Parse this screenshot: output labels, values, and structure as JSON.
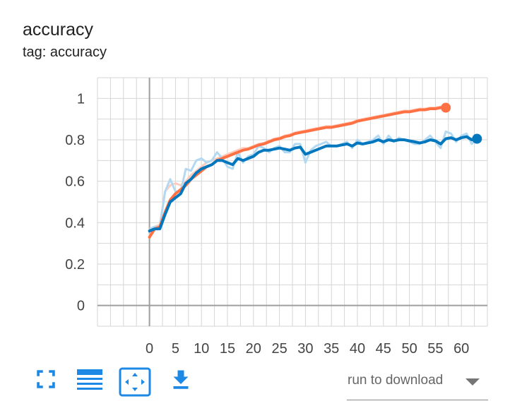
{
  "card": {
    "title": "accuracy",
    "subtitle": "tag: accuracy"
  },
  "toolbar": {
    "icons": [
      "fullscreen-icon",
      "data-table-icon",
      "fit-domain-icon",
      "download-icon"
    ],
    "accent_color": "#1e88e5"
  },
  "run_select": {
    "label": "run to download"
  },
  "chart_data": {
    "type": "line",
    "title": "accuracy",
    "xlabel": "",
    "ylabel": "",
    "xlim": [
      -10,
      65
    ],
    "ylim": [
      -0.1,
      1.1
    ],
    "x_ticks": [
      0,
      5,
      10,
      15,
      20,
      25,
      30,
      35,
      40,
      45,
      50,
      55,
      60
    ],
    "y_ticks": [
      0,
      0.2,
      0.4,
      0.6,
      0.8,
      1
    ],
    "grid": true,
    "series": [
      {
        "color": "#ff7043",
        "raw_color": "#ffccbc",
        "smoothed": [
          [
            0,
            0.33
          ],
          [
            1,
            0.37
          ],
          [
            2,
            0.38
          ],
          [
            3,
            0.45
          ],
          [
            4,
            0.51
          ],
          [
            5,
            0.54
          ],
          [
            6,
            0.56
          ],
          [
            7,
            0.58
          ],
          [
            8,
            0.61
          ],
          [
            9,
            0.63
          ],
          [
            10,
            0.65
          ],
          [
            11,
            0.67
          ],
          [
            12,
            0.68
          ],
          [
            13,
            0.7
          ],
          [
            14,
            0.71
          ],
          [
            15,
            0.72
          ],
          [
            16,
            0.73
          ],
          [
            17,
            0.74
          ],
          [
            18,
            0.75
          ],
          [
            19,
            0.755
          ],
          [
            20,
            0.765
          ],
          [
            21,
            0.775
          ],
          [
            22,
            0.78
          ],
          [
            23,
            0.79
          ],
          [
            24,
            0.8
          ],
          [
            25,
            0.805
          ],
          [
            26,
            0.815
          ],
          [
            27,
            0.82
          ],
          [
            28,
            0.83
          ],
          [
            29,
            0.835
          ],
          [
            30,
            0.84
          ],
          [
            31,
            0.845
          ],
          [
            32,
            0.85
          ],
          [
            33,
            0.855
          ],
          [
            34,
            0.86
          ],
          [
            35,
            0.86
          ],
          [
            36,
            0.865
          ],
          [
            37,
            0.87
          ],
          [
            38,
            0.875
          ],
          [
            39,
            0.88
          ],
          [
            40,
            0.89
          ],
          [
            41,
            0.895
          ],
          [
            42,
            0.9
          ],
          [
            43,
            0.905
          ],
          [
            44,
            0.91
          ],
          [
            45,
            0.915
          ],
          [
            46,
            0.92
          ],
          [
            47,
            0.925
          ],
          [
            48,
            0.93
          ],
          [
            49,
            0.935
          ],
          [
            50,
            0.935
          ],
          [
            51,
            0.94
          ],
          [
            52,
            0.945
          ],
          [
            53,
            0.945
          ],
          [
            54,
            0.95
          ],
          [
            55,
            0.95
          ],
          [
            56,
            0.955
          ],
          [
            57,
            0.955
          ]
        ],
        "raw": [
          [
            0,
            0.34
          ],
          [
            1,
            0.38
          ],
          [
            2,
            0.39
          ],
          [
            3,
            0.55
          ],
          [
            4,
            0.58
          ],
          [
            5,
            0.59
          ],
          [
            6,
            0.58
          ],
          [
            7,
            0.6
          ],
          [
            8,
            0.63
          ],
          [
            9,
            0.65
          ],
          [
            10,
            0.67
          ],
          [
            11,
            0.69
          ],
          [
            12,
            0.7
          ],
          [
            13,
            0.71
          ],
          [
            14,
            0.72
          ],
          [
            15,
            0.73
          ],
          [
            16,
            0.74
          ],
          [
            17,
            0.75
          ],
          [
            18,
            0.76
          ],
          [
            19,
            0.76
          ],
          [
            20,
            0.77
          ],
          [
            21,
            0.78
          ],
          [
            22,
            0.785
          ],
          [
            23,
            0.795
          ],
          [
            24,
            0.805
          ],
          [
            25,
            0.81
          ],
          [
            26,
            0.82
          ],
          [
            27,
            0.825
          ],
          [
            28,
            0.835
          ],
          [
            29,
            0.84
          ],
          [
            30,
            0.845
          ],
          [
            31,
            0.85
          ],
          [
            32,
            0.855
          ],
          [
            33,
            0.86
          ],
          [
            34,
            0.865
          ],
          [
            35,
            0.865
          ],
          [
            36,
            0.87
          ],
          [
            37,
            0.875
          ],
          [
            38,
            0.88
          ],
          [
            39,
            0.885
          ],
          [
            40,
            0.895
          ],
          [
            41,
            0.9
          ],
          [
            42,
            0.905
          ],
          [
            43,
            0.91
          ],
          [
            44,
            0.915
          ],
          [
            45,
            0.92
          ],
          [
            46,
            0.925
          ],
          [
            47,
            0.93
          ],
          [
            48,
            0.935
          ],
          [
            49,
            0.94
          ],
          [
            50,
            0.94
          ],
          [
            51,
            0.945
          ],
          [
            52,
            0.95
          ],
          [
            53,
            0.95
          ],
          [
            54,
            0.955
          ],
          [
            55,
            0.955
          ],
          [
            56,
            0.96
          ],
          [
            57,
            0.96
          ]
        ]
      },
      {
        "color": "#0277bd",
        "raw_color": "#b3d9f2",
        "smoothed": [
          [
            0,
            0.36
          ],
          [
            1,
            0.37
          ],
          [
            2,
            0.37
          ],
          [
            3,
            0.44
          ],
          [
            4,
            0.5
          ],
          [
            5,
            0.52
          ],
          [
            6,
            0.54
          ],
          [
            7,
            0.59
          ],
          [
            8,
            0.61
          ],
          [
            9,
            0.64
          ],
          [
            10,
            0.66
          ],
          [
            11,
            0.67
          ],
          [
            12,
            0.68
          ],
          [
            13,
            0.7
          ],
          [
            14,
            0.7
          ],
          [
            15,
            0.69
          ],
          [
            16,
            0.68
          ],
          [
            17,
            0.71
          ],
          [
            18,
            0.7
          ],
          [
            19,
            0.71
          ],
          [
            20,
            0.72
          ],
          [
            21,
            0.74
          ],
          [
            22,
            0.75
          ],
          [
            23,
            0.75
          ],
          [
            24,
            0.755
          ],
          [
            25,
            0.76
          ],
          [
            26,
            0.755
          ],
          [
            27,
            0.75
          ],
          [
            28,
            0.76
          ],
          [
            29,
            0.765
          ],
          [
            30,
            0.73
          ],
          [
            31,
            0.74
          ],
          [
            32,
            0.75
          ],
          [
            33,
            0.76
          ],
          [
            34,
            0.77
          ],
          [
            35,
            0.77
          ],
          [
            36,
            0.77
          ],
          [
            37,
            0.775
          ],
          [
            38,
            0.78
          ],
          [
            39,
            0.77
          ],
          [
            40,
            0.785
          ],
          [
            41,
            0.78
          ],
          [
            42,
            0.785
          ],
          [
            43,
            0.79
          ],
          [
            44,
            0.8
          ],
          [
            45,
            0.79
          ],
          [
            46,
            0.8
          ],
          [
            47,
            0.795
          ],
          [
            48,
            0.8
          ],
          [
            49,
            0.8
          ],
          [
            50,
            0.795
          ],
          [
            51,
            0.79
          ],
          [
            52,
            0.785
          ],
          [
            53,
            0.79
          ],
          [
            54,
            0.8
          ],
          [
            55,
            0.795
          ],
          [
            56,
            0.78
          ],
          [
            57,
            0.805
          ],
          [
            58,
            0.81
          ],
          [
            59,
            0.8
          ],
          [
            60,
            0.81
          ],
          [
            61,
            0.815
          ],
          [
            62,
            0.8
          ],
          [
            63,
            0.805
          ]
        ],
        "raw": [
          [
            0,
            0.37
          ],
          [
            1,
            0.38
          ],
          [
            2,
            0.38
          ],
          [
            3,
            0.55
          ],
          [
            4,
            0.61
          ],
          [
            5,
            0.55
          ],
          [
            6,
            0.55
          ],
          [
            7,
            0.66
          ],
          [
            8,
            0.65
          ],
          [
            9,
            0.7
          ],
          [
            10,
            0.71
          ],
          [
            11,
            0.69
          ],
          [
            12,
            0.7
          ],
          [
            13,
            0.74
          ],
          [
            14,
            0.71
          ],
          [
            15,
            0.67
          ],
          [
            16,
            0.66
          ],
          [
            17,
            0.74
          ],
          [
            18,
            0.69
          ],
          [
            19,
            0.72
          ],
          [
            20,
            0.73
          ],
          [
            21,
            0.77
          ],
          [
            22,
            0.76
          ],
          [
            23,
            0.74
          ],
          [
            24,
            0.76
          ],
          [
            25,
            0.77
          ],
          [
            26,
            0.74
          ],
          [
            27,
            0.74
          ],
          [
            28,
            0.78
          ],
          [
            29,
            0.78
          ],
          [
            30,
            0.69
          ],
          [
            31,
            0.75
          ],
          [
            32,
            0.77
          ],
          [
            33,
            0.78
          ],
          [
            34,
            0.79
          ],
          [
            35,
            0.77
          ],
          [
            36,
            0.77
          ],
          [
            37,
            0.78
          ],
          [
            38,
            0.79
          ],
          [
            39,
            0.76
          ],
          [
            40,
            0.8
          ],
          [
            41,
            0.78
          ],
          [
            42,
            0.79
          ],
          [
            43,
            0.8
          ],
          [
            44,
            0.82
          ],
          [
            45,
            0.78
          ],
          [
            46,
            0.82
          ],
          [
            47,
            0.79
          ],
          [
            48,
            0.81
          ],
          [
            49,
            0.8
          ],
          [
            50,
            0.79
          ],
          [
            51,
            0.78
          ],
          [
            52,
            0.78
          ],
          [
            53,
            0.8
          ],
          [
            54,
            0.82
          ],
          [
            55,
            0.79
          ],
          [
            56,
            0.76
          ],
          [
            57,
            0.84
          ],
          [
            58,
            0.83
          ],
          [
            59,
            0.79
          ],
          [
            60,
            0.82
          ],
          [
            61,
            0.83
          ],
          [
            62,
            0.78
          ],
          [
            63,
            0.81
          ]
        ]
      }
    ]
  }
}
